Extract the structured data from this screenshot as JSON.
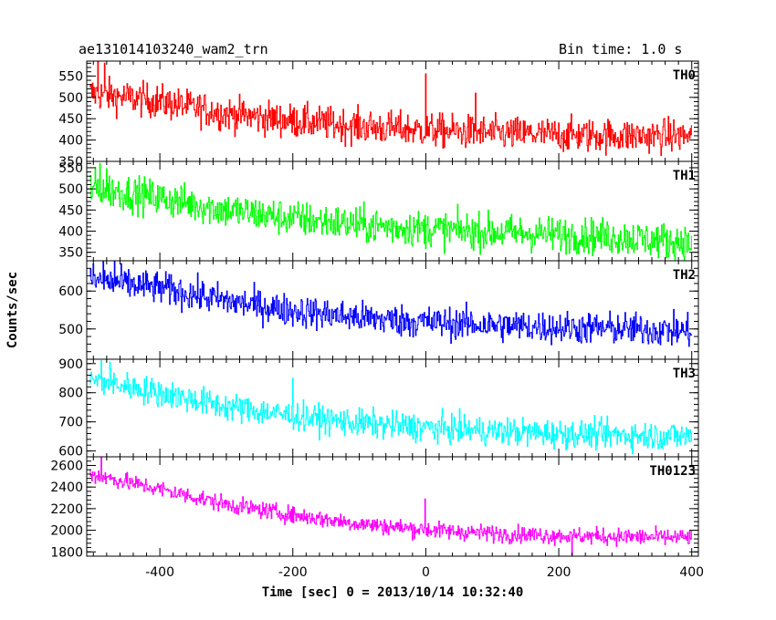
{
  "title_left": "ae131014103240_wam2_trn",
  "title_right": "Bin time: 1.0 s",
  "chart_data": {
    "type": "line",
    "xlabel": "Time [sec] 0 = 2013/10/14 10:32:40",
    "ylabel": "Counts/sec",
    "xlim": [
      -510,
      410
    ],
    "xticks": [
      -400,
      -200,
      0,
      200,
      400
    ],
    "x_step": 1,
    "grid": false,
    "panels": [
      {
        "name": "TH0",
        "color": "#ff0000",
        "ylim": [
          350,
          585
        ],
        "yticks": [
          350,
          400,
          450,
          500,
          550
        ],
        "trend": [
          [
            -505,
            510
          ],
          [
            -400,
            490
          ],
          [
            -300,
            462
          ],
          [
            -200,
            445
          ],
          [
            -100,
            432
          ],
          [
            0,
            423
          ],
          [
            100,
            416
          ],
          [
            200,
            412
          ],
          [
            300,
            410
          ],
          [
            400,
            410
          ]
        ],
        "noise": 28,
        "spikes": [
          [
            0,
            555
          ],
          [
            -493,
            583
          ],
          [
            -483,
            580
          ],
          [
            75,
            510
          ]
        ]
      },
      {
        "name": "TH1",
        "color": "#00ff00",
        "ylim": [
          330,
          565
        ],
        "yticks": [
          350,
          400,
          450,
          500,
          550
        ],
        "trend": [
          [
            -505,
            505
          ],
          [
            -400,
            478
          ],
          [
            -300,
            450
          ],
          [
            -200,
            430
          ],
          [
            -100,
            415
          ],
          [
            0,
            405
          ],
          [
            100,
            398
          ],
          [
            200,
            392
          ],
          [
            300,
            385
          ],
          [
            400,
            372
          ]
        ],
        "noise": 30,
        "spikes": [
          [
            -490,
            560
          ],
          [
            -480,
            548
          ]
        ]
      },
      {
        "name": "TH2",
        "color": "#0000ff",
        "ylim": [
          420,
          680
        ],
        "yticks": [
          500,
          600
        ],
        "trend": [
          [
            -505,
            630
          ],
          [
            -400,
            608
          ],
          [
            -300,
            574
          ],
          [
            -200,
            548
          ],
          [
            -100,
            530
          ],
          [
            0,
            518
          ],
          [
            100,
            510
          ],
          [
            200,
            504
          ],
          [
            300,
            500
          ],
          [
            400,
            494
          ]
        ],
        "noise": 30,
        "spikes": [
          [
            -485,
            680
          ],
          [
            -468,
            678
          ]
        ]
      },
      {
        "name": "TH3",
        "color": "#00ffff",
        "ylim": [
          580,
          915
        ],
        "yticks": [
          600,
          700,
          800,
          900
        ],
        "trend": [
          [
            -505,
            845
          ],
          [
            -400,
            800
          ],
          [
            -300,
            752
          ],
          [
            -200,
            720
          ],
          [
            -100,
            695
          ],
          [
            0,
            680
          ],
          [
            100,
            668
          ],
          [
            200,
            660
          ],
          [
            300,
            655
          ],
          [
            400,
            650
          ]
        ],
        "noise": 34,
        "spikes": [
          [
            -488,
            910
          ],
          [
            -475,
            905
          ],
          [
            -200,
            850
          ]
        ]
      },
      {
        "name": "TH0123",
        "color": "#ff00ff",
        "ylim": [
          1760,
          2680
        ],
        "yticks": [
          1800,
          2000,
          2200,
          2400,
          2600
        ],
        "trend": [
          [
            -505,
            2520
          ],
          [
            -400,
            2380
          ],
          [
            -300,
            2240
          ],
          [
            -200,
            2140
          ],
          [
            -100,
            2060
          ],
          [
            0,
            2005
          ],
          [
            100,
            1970
          ],
          [
            200,
            1950
          ],
          [
            300,
            1940
          ],
          [
            400,
            1930
          ]
        ],
        "noise": 55,
        "spikes": [
          [
            -488,
            2680
          ],
          [
            -1,
            2290
          ],
          [
            220,
            1770
          ]
        ]
      }
    ]
  }
}
